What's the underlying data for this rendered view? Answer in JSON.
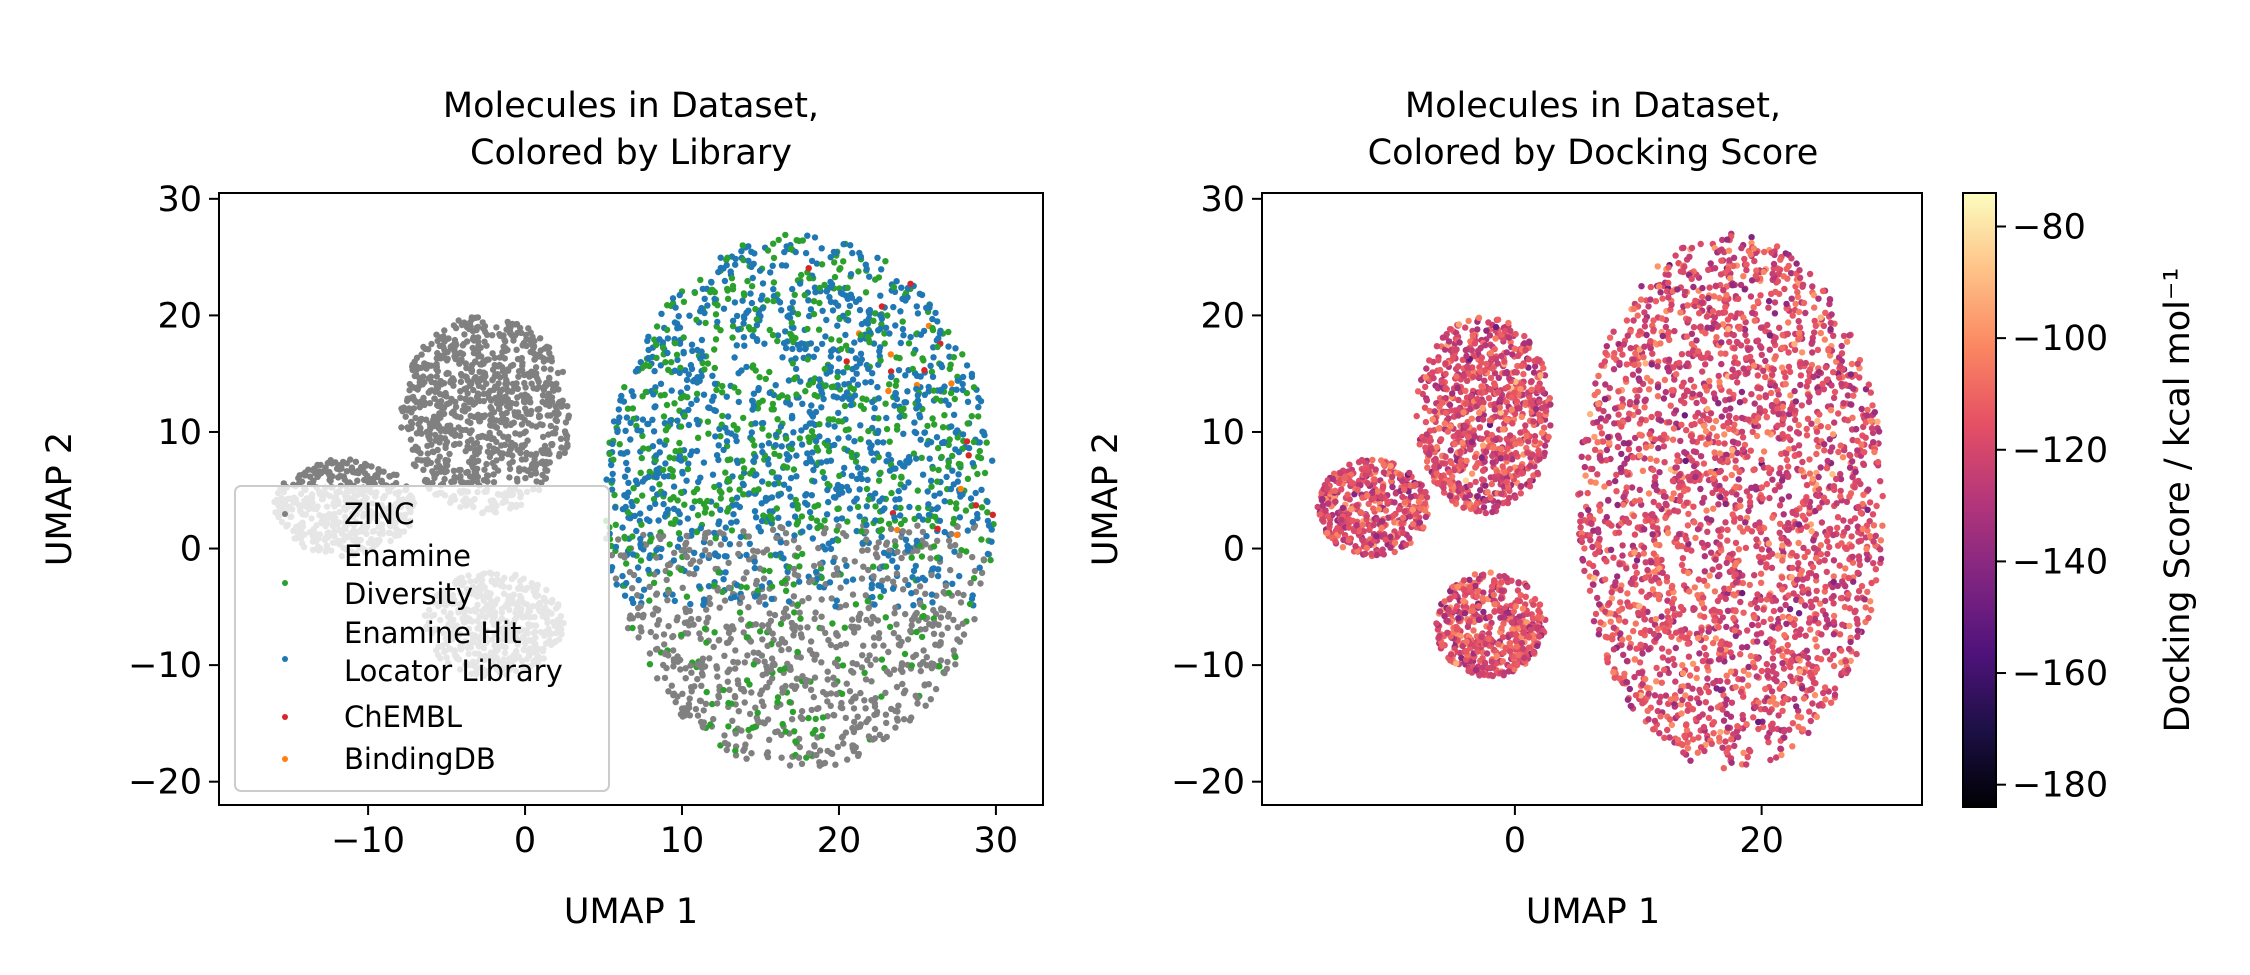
{
  "chart_data": [
    {
      "type": "scatter",
      "title": "Molecules in Dataset,\nColored by Library",
      "xlabel": "UMAP 1",
      "ylabel": "UMAP 2",
      "xlim": [
        -19.5,
        33
      ],
      "ylim": [
        -22,
        30.5
      ],
      "xticks": [
        -10,
        0,
        10,
        20,
        30
      ],
      "yticks": [
        -20,
        -10,
        0,
        10,
        20,
        30
      ],
      "xtick_labels": [
        "−10",
        "0",
        "10",
        "20",
        "30"
      ],
      "ytick_labels": [
        "−20",
        "−10",
        "0",
        "10",
        "20",
        "30"
      ],
      "grid": false,
      "legend_position": "lower-left",
      "series": [
        {
          "name": "ZINC",
          "color": "#808080"
        },
        {
          "name": "Enamine\nDiversity",
          "color": "#2ca02c"
        },
        {
          "name": "Enamine Hit\nLocator Library",
          "color": "#1f77b4"
        },
        {
          "name": "ChEMBL",
          "color": "#d62728"
        },
        {
          "name": "BindingDB",
          "color": "#ff7f0e"
        }
      ],
      "clusters": [
        {
          "center": [
            -2.5,
            11.5
          ],
          "spread": [
            5.5,
            8.5
          ]
        },
        {
          "center": [
            -11.5,
            3.5
          ],
          "spread": [
            4.5,
            4.2
          ]
        },
        {
          "center": [
            -2.0,
            -6.5
          ],
          "spread": [
            4.5,
            4.5
          ]
        },
        {
          "center": [
            17.5,
            4.0
          ],
          "spread": [
            12.5,
            23.0
          ]
        }
      ]
    },
    {
      "type": "scatter",
      "title": "Molecules in Dataset,\nColored by Docking Score",
      "xlabel": "UMAP 1",
      "ylabel": "UMAP 2",
      "xlim": [
        -20.5,
        33
      ],
      "ylim": [
        -22,
        30.5
      ],
      "xticks": [
        0,
        20
      ],
      "yticks": [
        -20,
        -10,
        0,
        10,
        20,
        30
      ],
      "xtick_labels": [
        "0",
        "20"
      ],
      "ytick_labels": [
        "−20",
        "−10",
        "0",
        "10",
        "20",
        "30"
      ],
      "grid": false,
      "colormap": "magma",
      "colorbar": {
        "label": "Docking Score / kcal mol⁻¹",
        "range": [
          -184,
          -74
        ],
        "ticks": [
          -80,
          -100,
          -120,
          -140,
          -160,
          -180
        ],
        "tick_labels": [
          "−80",
          "−100",
          "−120",
          "−140",
          "−160",
          "−180"
        ]
      },
      "score_typical": -118
    }
  ]
}
